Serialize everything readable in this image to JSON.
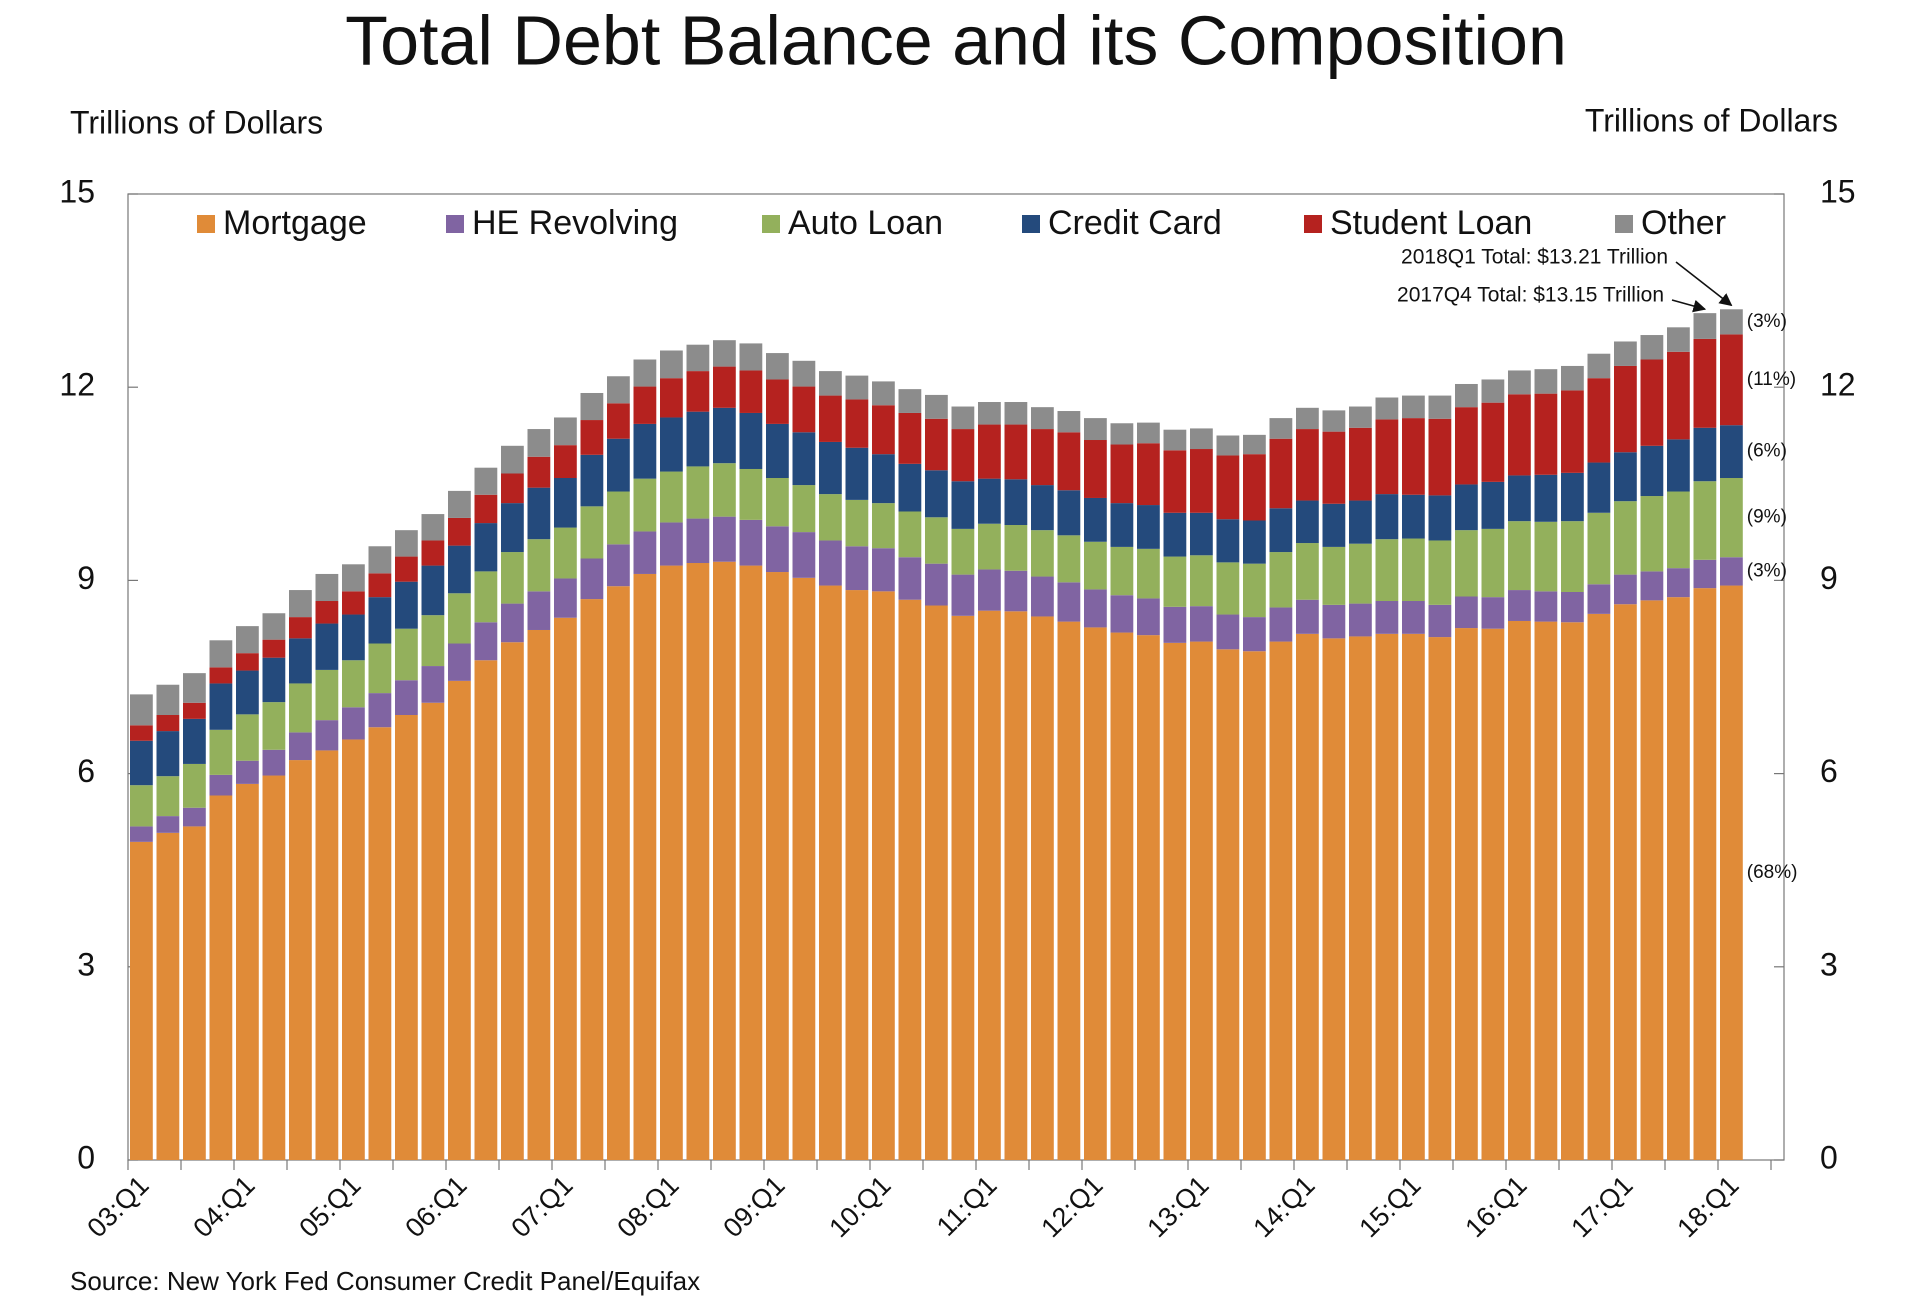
{
  "chart_data": {
    "type": "stacked_bar",
    "title": "Total Debt Balance and its Composition",
    "y_axis_label": "Trillions of Dollars",
    "y2_axis_label": "Trillions of Dollars",
    "source": "Source: New York Fed Consumer Credit Panel/Equifax",
    "categories": [
      "03:Q1",
      null,
      null,
      null,
      "04:Q1",
      null,
      null,
      null,
      "05:Q1",
      null,
      null,
      null,
      "06:Q1",
      null,
      null,
      null,
      "07:Q1",
      null,
      null,
      null,
      "08:Q1",
      null,
      null,
      null,
      "09:Q1",
      null,
      null,
      null,
      "10:Q1",
      null,
      null,
      null,
      "11:Q1",
      null,
      null,
      null,
      "12:Q1",
      null,
      null,
      null,
      "13:Q1",
      null,
      null,
      null,
      "14:Q1",
      null,
      null,
      null,
      "15:Q1",
      null,
      null,
      null,
      "16:Q1",
      null,
      null,
      null,
      "17:Q1",
      null,
      null,
      null,
      "18:Q1"
    ],
    "ylim": [
      0,
      15
    ],
    "yticks": [
      0,
      3,
      6,
      9,
      12,
      15
    ],
    "y2lim": [
      0,
      15
    ],
    "y2ticks": [
      0,
      3,
      6,
      9,
      12,
      15
    ],
    "grid": false,
    "legend": "top",
    "series": [
      {
        "name": "Mortgage",
        "color": "#e08b38",
        "share_label": "(68%)",
        "values": [
          4.94,
          5.08,
          5.18,
          5.66,
          5.84,
          5.97,
          6.21,
          6.36,
          6.53,
          6.72,
          6.91,
          7.1,
          7.44,
          7.76,
          8.04,
          8.23,
          8.42,
          8.71,
          8.91,
          9.1,
          9.23,
          9.27,
          9.29,
          9.23,
          9.13,
          9.04,
          8.92,
          8.85,
          8.83,
          8.7,
          8.61,
          8.45,
          8.53,
          8.52,
          8.44,
          8.36,
          8.27,
          8.19,
          8.15,
          8.03,
          8.05,
          7.93,
          7.9,
          8.05,
          8.17,
          8.1,
          8.13,
          8.17,
          8.17,
          8.12,
          8.26,
          8.25,
          8.37,
          8.36,
          8.35,
          8.48,
          8.63,
          8.69,
          8.74,
          8.88,
          8.92
        ]
      },
      {
        "name": "HE Revolving",
        "color": "#8064a2",
        "share_label": "(3%)",
        "values": [
          0.24,
          0.26,
          0.29,
          0.32,
          0.36,
          0.4,
          0.43,
          0.47,
          0.5,
          0.53,
          0.54,
          0.57,
          0.58,
          0.59,
          0.6,
          0.6,
          0.61,
          0.63,
          0.65,
          0.66,
          0.67,
          0.69,
          0.7,
          0.71,
          0.71,
          0.71,
          0.7,
          0.68,
          0.67,
          0.66,
          0.65,
          0.64,
          0.64,
          0.63,
          0.62,
          0.61,
          0.59,
          0.58,
          0.57,
          0.56,
          0.55,
          0.54,
          0.53,
          0.53,
          0.53,
          0.52,
          0.51,
          0.51,
          0.51,
          0.5,
          0.49,
          0.49,
          0.48,
          0.47,
          0.47,
          0.46,
          0.46,
          0.45,
          0.45,
          0.44,
          0.44
        ]
      },
      {
        "name": "Auto Loan",
        "color": "#93b05c",
        "share_label": "(9%)",
        "values": [
          0.64,
          0.62,
          0.68,
          0.7,
          0.72,
          0.74,
          0.76,
          0.78,
          0.73,
          0.77,
          0.8,
          0.79,
          0.78,
          0.79,
          0.8,
          0.81,
          0.79,
          0.81,
          0.82,
          0.82,
          0.79,
          0.81,
          0.83,
          0.79,
          0.75,
          0.73,
          0.72,
          0.72,
          0.7,
          0.71,
          0.72,
          0.71,
          0.71,
          0.71,
          0.72,
          0.73,
          0.74,
          0.75,
          0.77,
          0.78,
          0.79,
          0.81,
          0.83,
          0.86,
          0.88,
          0.9,
          0.93,
          0.96,
          0.97,
          1.0,
          1.03,
          1.06,
          1.07,
          1.08,
          1.1,
          1.11,
          1.14,
          1.17,
          1.19,
          1.22,
          1.23
        ]
      },
      {
        "name": "Credit Card",
        "color": "#244a7c",
        "share_label": "(6%)",
        "values": [
          0.69,
          0.7,
          0.7,
          0.72,
          0.68,
          0.69,
          0.7,
          0.72,
          0.71,
          0.72,
          0.73,
          0.77,
          0.74,
          0.75,
          0.76,
          0.8,
          0.77,
          0.8,
          0.82,
          0.85,
          0.84,
          0.85,
          0.86,
          0.87,
          0.84,
          0.82,
          0.81,
          0.81,
          0.76,
          0.74,
          0.73,
          0.74,
          0.7,
          0.71,
          0.7,
          0.7,
          0.68,
          0.68,
          0.68,
          0.68,
          0.66,
          0.67,
          0.67,
          0.68,
          0.66,
          0.67,
          0.67,
          0.7,
          0.68,
          0.7,
          0.71,
          0.73,
          0.71,
          0.73,
          0.75,
          0.78,
          0.76,
          0.78,
          0.81,
          0.83,
          0.82
        ]
      },
      {
        "name": "Student Loan",
        "color": "#b5221f",
        "share_label": "(11%)",
        "values": [
          0.24,
          0.25,
          0.25,
          0.25,
          0.27,
          0.28,
          0.33,
          0.35,
          0.36,
          0.37,
          0.39,
          0.39,
          0.43,
          0.44,
          0.46,
          0.48,
          0.51,
          0.54,
          0.55,
          0.58,
          0.61,
          0.63,
          0.64,
          0.66,
          0.69,
          0.71,
          0.72,
          0.75,
          0.76,
          0.79,
          0.8,
          0.81,
          0.84,
          0.85,
          0.87,
          0.9,
          0.9,
          0.91,
          0.96,
          0.97,
          0.99,
          0.99,
          1.03,
          1.08,
          1.11,
          1.12,
          1.13,
          1.16,
          1.19,
          1.19,
          1.2,
          1.23,
          1.26,
          1.26,
          1.28,
          1.31,
          1.34,
          1.34,
          1.36,
          1.38,
          1.41
        ]
      },
      {
        "name": "Other",
        "color": "#8c8c8c",
        "share_label": "(3%)",
        "values": [
          0.48,
          0.47,
          0.46,
          0.42,
          0.42,
          0.41,
          0.42,
          0.42,
          0.42,
          0.42,
          0.41,
          0.41,
          0.42,
          0.42,
          0.43,
          0.43,
          0.43,
          0.42,
          0.42,
          0.42,
          0.43,
          0.41,
          0.41,
          0.42,
          0.41,
          0.4,
          0.38,
          0.37,
          0.37,
          0.37,
          0.37,
          0.35,
          0.35,
          0.35,
          0.34,
          0.33,
          0.34,
          0.33,
          0.32,
          0.32,
          0.32,
          0.31,
          0.3,
          0.32,
          0.33,
          0.33,
          0.33,
          0.34,
          0.35,
          0.36,
          0.36,
          0.36,
          0.37,
          0.38,
          0.38,
          0.38,
          0.38,
          0.38,
          0.38,
          0.4,
          0.39
        ]
      }
    ],
    "annotations": [
      "2018Q1 Total: $13.21 Trillion",
      "2017Q4 Total: $13.15 Trillion"
    ]
  }
}
